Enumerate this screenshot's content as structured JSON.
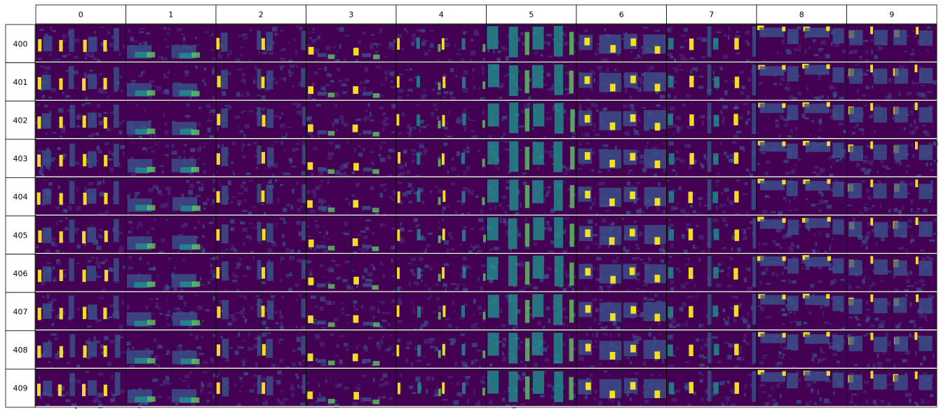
{
  "chart_data": {
    "type": "heatmap",
    "title": "",
    "xlabel": "",
    "ylabel": "",
    "columns": [
      "0",
      "1",
      "2",
      "3",
      "4",
      "5",
      "6",
      "7",
      "8",
      "9"
    ],
    "rows": [
      "400",
      "401",
      "402",
      "403",
      "404",
      "405",
      "406",
      "407",
      "408",
      "409"
    ],
    "panels_per_cell": 2,
    "colormap": "viridis",
    "colors": {
      "background": "#440154",
      "low": "#3b528b",
      "mid": "#21918c",
      "high": "#5ec962",
      "peak": "#fde725",
      "border": "#000000"
    }
  }
}
